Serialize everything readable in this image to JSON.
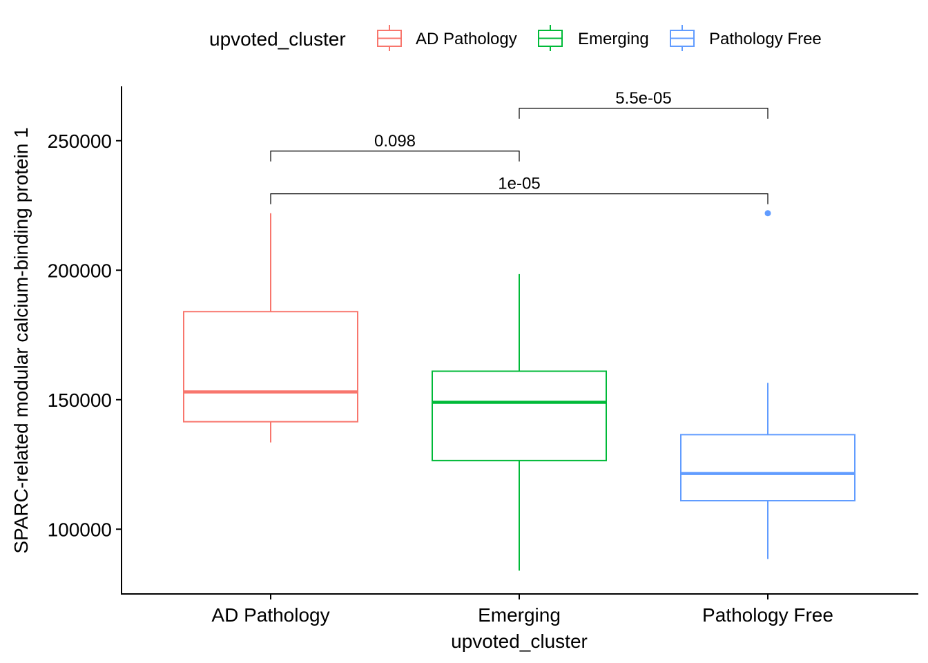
{
  "chart_data": {
    "type": "boxplot",
    "xlabel": "upvoted_cluster",
    "ylabel": "SPARC-related modular calcium-binding protein 1",
    "ylim": [
      75000,
      271000
    ],
    "yticks": [
      100000,
      150000,
      200000,
      250000
    ],
    "ytick_labels": [
      "100000",
      "150000",
      "200000",
      "250000"
    ],
    "categories": [
      "AD Pathology",
      "Emerging",
      "Pathology Free"
    ],
    "legend": {
      "title": "upvoted_cluster",
      "position": "top",
      "entries": [
        "AD Pathology",
        "Emerging",
        "Pathology Free"
      ]
    },
    "colors": [
      "#F8766D",
      "#00BA38",
      "#619CFF"
    ],
    "boxes": [
      {
        "name": "AD Pathology",
        "whisker_low": 133500,
        "q1": 141500,
        "median": 153000,
        "q3": 184000,
        "whisker_high": 222000,
        "outliers": []
      },
      {
        "name": "Emerging",
        "whisker_low": 84000,
        "q1": 126500,
        "median": 149000,
        "q3": 161000,
        "whisker_high": 198500,
        "outliers": []
      },
      {
        "name": "Pathology Free",
        "whisker_low": 88500,
        "q1": 111000,
        "median": 121500,
        "q3": 136500,
        "whisker_high": 156500,
        "outliers": [
          222000
        ]
      }
    ],
    "comparisons": [
      {
        "from": "AD Pathology",
        "to": "Emerging",
        "label": "0.098",
        "y": 246000,
        "tip": 242000
      },
      {
        "from": "Emerging",
        "to": "Pathology Free",
        "label": "5.5e-05",
        "y": 262500,
        "tip": 258500
      },
      {
        "from": "AD Pathology",
        "to": "Pathology Free",
        "label": "1e-05",
        "y": 229500,
        "tip": 225500
      }
    ]
  }
}
